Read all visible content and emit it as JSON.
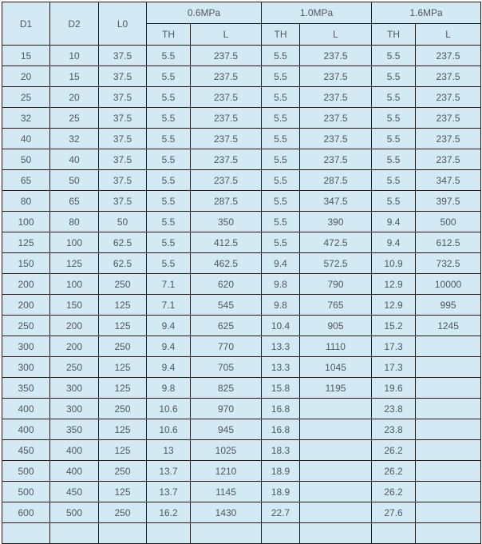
{
  "chart_data": {
    "type": "table",
    "header": {
      "d1": "D1",
      "d2": "D2",
      "l0": "L0",
      "groups": [
        {
          "label": "0.6MPa"
        },
        {
          "label": "1.0MPa"
        },
        {
          "label": "1.6MPa"
        }
      ],
      "sub_headers": [
        "TH",
        "L",
        "TH",
        "L",
        "TH",
        "L"
      ]
    },
    "columns_flat": [
      "D1",
      "D2",
      "L0",
      "0.6MPa TH",
      "0.6MPa L",
      "1.0MPa TH",
      "1.0MPa L",
      "1.6MPa TH",
      "1.6MPa L"
    ],
    "rows": [
      [
        "15",
        "10",
        "37.5",
        "5.5",
        "237.5",
        "5.5",
        "237.5",
        "5.5",
        "237.5"
      ],
      [
        "20",
        "15",
        "37.5",
        "5.5",
        "237.5",
        "5.5",
        "237.5",
        "5.5",
        "237.5"
      ],
      [
        "25",
        "20",
        "37.5",
        "5.5",
        "237.5",
        "5.5",
        "237.5",
        "5.5",
        "237.5"
      ],
      [
        "32",
        "25",
        "37.5",
        "5.5",
        "237.5",
        "5.5",
        "237.5",
        "5.5",
        "237.5"
      ],
      [
        "40",
        "32",
        "37.5",
        "5.5",
        "237.5",
        "5.5",
        "237.5",
        "5.5",
        "237.5"
      ],
      [
        "50",
        "40",
        "37.5",
        "5.5",
        "237.5",
        "5.5",
        "237.5",
        "5.5",
        "237.5"
      ],
      [
        "65",
        "50",
        "37.5",
        "5.5",
        "237.5",
        "5.5",
        "287.5",
        "5.5",
        "347.5"
      ],
      [
        "80",
        "65",
        "37.5",
        "5.5",
        "287.5",
        "5.5",
        "347.5",
        "5.5",
        "397.5"
      ],
      [
        "100",
        "80",
        "50",
        "5.5",
        "350",
        "5.5",
        "390",
        "9.4",
        "500"
      ],
      [
        "125",
        "100",
        "62.5",
        "5.5",
        "412.5",
        "5.5",
        "472.5",
        "9.4",
        "612.5"
      ],
      [
        "150",
        "125",
        "62.5",
        "5.5",
        "462.5",
        "9.4",
        "572.5",
        "10.9",
        "732.5"
      ],
      [
        "200",
        "100",
        "250",
        "7.1",
        "620",
        "9.8",
        "790",
        "12.9",
        "10000"
      ],
      [
        "200",
        "150",
        "125",
        "7.1",
        "545",
        "9.8",
        "765",
        "12.9",
        "995"
      ],
      [
        "250",
        "200",
        "125",
        "9.4",
        "625",
        "10.4",
        "905",
        "15.2",
        "1245"
      ],
      [
        "300",
        "200",
        "250",
        "9.4",
        "770",
        "13.3",
        "1110",
        "17.3",
        ""
      ],
      [
        "300",
        "250",
        "125",
        "9.4",
        "705",
        "13.3",
        "1045",
        "17.3",
        ""
      ],
      [
        "350",
        "300",
        "125",
        "9.8",
        "825",
        "15.8",
        "1195",
        "19.6",
        ""
      ],
      [
        "400",
        "300",
        "250",
        "10.6",
        "970",
        "16.8",
        "",
        "23.8",
        ""
      ],
      [
        "400",
        "350",
        "125",
        "10.6",
        "945",
        "16.8",
        "",
        "23.8",
        ""
      ],
      [
        "450",
        "400",
        "125",
        "13",
        "1025",
        "18.3",
        "",
        "26.2",
        ""
      ],
      [
        "500",
        "400",
        "250",
        "13.7",
        "1210",
        "18.9",
        "",
        "26.2",
        ""
      ],
      [
        "500",
        "450",
        "125",
        "13.7",
        "1145",
        "18.9",
        "",
        "26.2",
        ""
      ],
      [
        "600",
        "500",
        "250",
        "16.2",
        "1430",
        "22.7",
        "",
        "27.6",
        ""
      ]
    ]
  },
  "colors": {
    "page_bg": "#ffffff",
    "cell_bg": "#d3eaf5",
    "border": "#1b1b1b",
    "text": "#50575f"
  }
}
